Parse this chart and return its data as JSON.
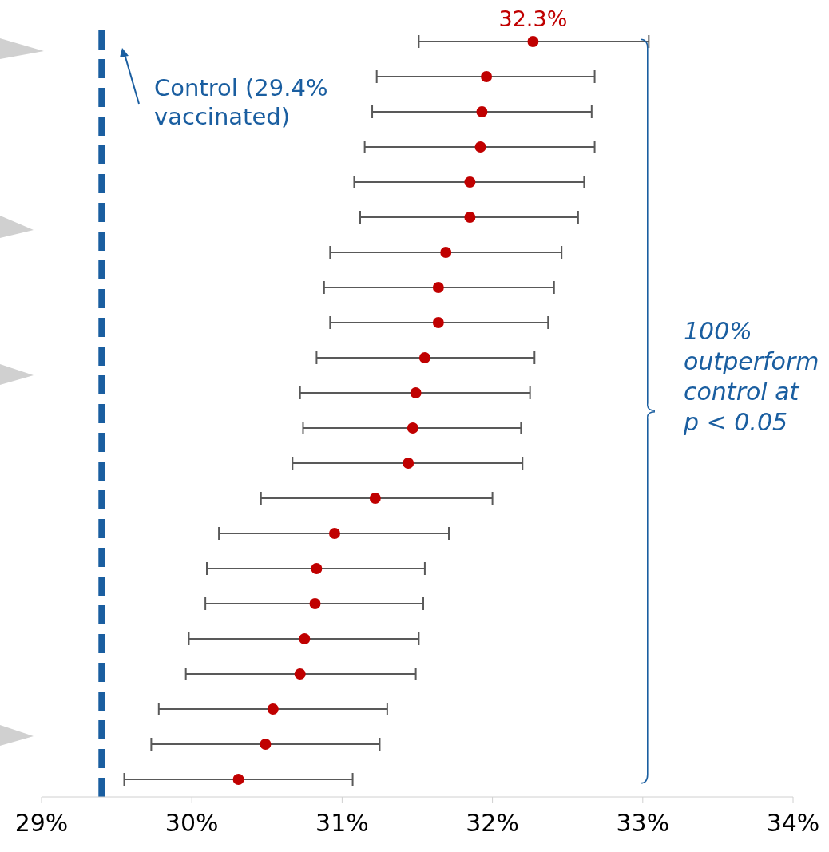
{
  "chart_data": {
    "type": "scatter",
    "orientation": "horizontal",
    "categories": [
      null,
      null,
      null,
      null,
      null,
      null,
      null,
      null,
      null,
      null,
      null,
      null,
      null,
      null,
      null,
      null,
      null,
      null,
      null,
      null,
      null,
      null
    ],
    "values": [
      32.27,
      31.96,
      31.93,
      31.92,
      31.85,
      31.85,
      31.69,
      31.64,
      31.64,
      31.55,
      31.49,
      31.47,
      31.44,
      31.22,
      30.95,
      30.83,
      30.82,
      30.75,
      30.72,
      30.54,
      30.49,
      30.31
    ],
    "errors": [
      [
        31.51,
        33.04
      ],
      [
        31.23,
        32.68
      ],
      [
        31.2,
        32.66
      ],
      [
        31.15,
        32.68
      ],
      [
        31.08,
        32.61
      ],
      [
        31.12,
        32.57
      ],
      [
        30.92,
        32.46
      ],
      [
        30.88,
        32.41
      ],
      [
        30.92,
        32.37
      ],
      [
        30.83,
        32.28
      ],
      [
        30.72,
        32.25
      ],
      [
        30.74,
        32.19
      ],
      [
        30.67,
        32.2
      ],
      [
        30.46,
        32.0
      ],
      [
        30.18,
        31.71
      ],
      [
        30.1,
        31.55
      ],
      [
        30.09,
        31.54
      ],
      [
        29.98,
        31.51
      ],
      [
        29.96,
        31.49
      ],
      [
        29.78,
        31.3
      ],
      [
        29.73,
        31.25
      ],
      [
        29.55,
        31.07
      ]
    ],
    "value_labels": [
      "32.3%",
      null,
      null,
      null,
      null,
      null,
      null,
      null,
      null,
      null,
      null,
      null,
      null,
      null,
      null,
      null,
      null,
      null,
      null,
      null,
      null,
      null
    ],
    "color": "#c00000",
    "marker": "circle",
    "xlim": [
      29,
      34
    ],
    "xticks": [
      {
        "value": 29,
        "label": "29%"
      },
      {
        "value": 30,
        "label": "30%"
      },
      {
        "value": 31,
        "label": "31%"
      },
      {
        "value": 32,
        "label": "32%"
      },
      {
        "value": 33,
        "label": "33%"
      },
      {
        "value": 34,
        "label": "34%"
      }
    ],
    "ref_lines": [
      {
        "axis": "x",
        "value": 29.4,
        "label": "Control (29.4% vaccinated)",
        "color": "#1a5ea0",
        "line_style": "dashed"
      }
    ],
    "annotations": [
      "100% outperform control at p < 0.05"
    ],
    "tick_labels": "x"
  }
}
